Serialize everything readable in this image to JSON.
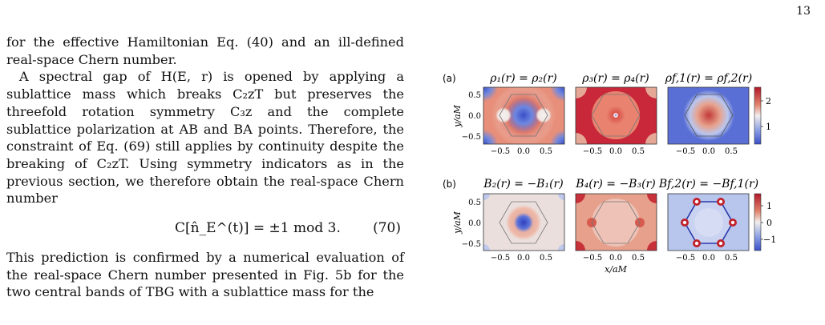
{
  "page_number": "13",
  "text": {
    "p1": "for the effective Hamiltonian Eq. (40) and an ill-defined real-space Chern number.",
    "p2": "A spectral gap of H(E, r) is opened by applying a sublattice mass which breaks C₂zT but preserves the threefold rotation symmetry C₃z and the complete sublattice polarization at AB and BA points. Therefore, the constraint of Eq. (69) still applies by continuity despite the breaking of C₂zT. Using symmetry indicators as in the previous section, we therefore obtain the real-space Chern number",
    "equation": "C[n̂_E^(t)] = ±1   mod 3.",
    "equation_number": "(70)",
    "p3": "This prediction is confirmed by a numerical evaluation of the real-space Chern number presented in Fig. 5b for the two central bands of TBG with a sublattice mass for the"
  },
  "figure": {
    "row_a": {
      "label": "(a)",
      "titles": [
        "ρ₁(r) = ρ₂(r)",
        "ρ₃(r) = ρ₄(r)",
        "ρf,1(r) = ρf,2(r)"
      ],
      "colorbar_ticks": [
        "2",
        "1"
      ]
    },
    "row_b": {
      "label": "(b)",
      "titles": [
        "B₂(r) = −B₁(r)",
        "B₄(r) = −B₃(r)",
        "Bf,2(r) = −Bf,1(r)"
      ],
      "colorbar_ticks": [
        "1",
        "0",
        "−1"
      ]
    },
    "y_axis_label": "y/aM",
    "x_axis_label": "x/aM",
    "y_ticks": [
      "0.5",
      "0.0",
      "−0.5"
    ],
    "x_ticks": [
      "−0.5",
      "0.0",
      "0.5"
    ]
  },
  "colors": {
    "red": "#c0212a",
    "white": "#f2f0ef",
    "blue": "#3a4fc8",
    "link": "#2255cc"
  }
}
